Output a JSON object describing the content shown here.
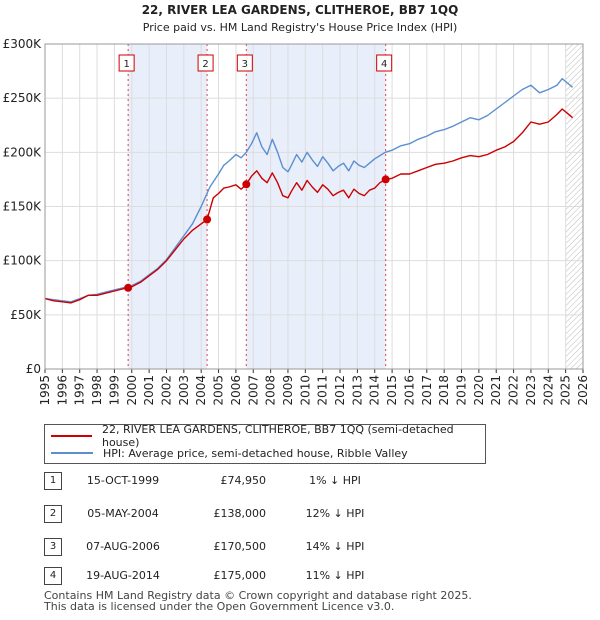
{
  "chart_data": {
    "type": "line",
    "title": "22, RIVER LEA GARDENS, CLITHEROE, BB7 1QQ",
    "subtitle": "Price paid vs. HM Land Registry's House Price Index (HPI)",
    "xlim": [
      1995,
      2026
    ],
    "ylim": [
      0,
      300000
    ],
    "y_ticks": [
      0,
      50000,
      100000,
      150000,
      200000,
      250000,
      300000
    ],
    "y_tick_labels": [
      "£0",
      "£50K",
      "£100K",
      "£150K",
      "£200K",
      "£250K",
      "£300K"
    ],
    "x_ticks": [
      1995,
      1996,
      1997,
      1998,
      1999,
      2000,
      2001,
      2002,
      2003,
      2004,
      2005,
      2006,
      2007,
      2008,
      2009,
      2010,
      2011,
      2012,
      2013,
      2014,
      2015,
      2016,
      2017,
      2018,
      2019,
      2020,
      2021,
      2022,
      2023,
      2024,
      2025,
      2026
    ],
    "x_tick_labels": [
      "1995",
      "1996",
      "1997",
      "1998",
      "1999",
      "2000",
      "2001",
      "2002",
      "2003",
      "2004",
      "2005",
      "2006",
      "2007",
      "2008",
      "2009",
      "2010",
      "2011",
      "2012",
      "2013",
      "2014",
      "2015",
      "2016",
      "2017",
      "2018",
      "2019",
      "2020",
      "2021",
      "2022",
      "2023",
      "2024",
      "2025",
      "2026"
    ],
    "grid": true,
    "shaded_periods": [
      [
        1999.79,
        2004.34
      ],
      [
        2006.6,
        2014.63
      ]
    ],
    "hatched_from": 2025.0,
    "series": [
      {
        "name": "22, RIVER LEA GARDENS, CLITHEROE, BB7 1QQ (semi-detached house)",
        "color": "#cc0000",
        "x": [
          1995.0,
          1995.5,
          1996.0,
          1996.5,
          1997.0,
          1997.5,
          1998.0,
          1998.5,
          1999.0,
          1999.5,
          1999.79,
          2000.0,
          2000.5,
          2001.0,
          2001.5,
          2002.0,
          2002.5,
          2003.0,
          2003.5,
          2004.0,
          2004.34,
          2004.7,
          2005.0,
          2005.3,
          2005.6,
          2006.0,
          2006.3,
          2006.6,
          2006.9,
          2007.2,
          2007.5,
          2007.8,
          2008.1,
          2008.4,
          2008.7,
          2009.0,
          2009.2,
          2009.5,
          2009.8,
          2010.1,
          2010.4,
          2010.7,
          2011.0,
          2011.3,
          2011.6,
          2011.9,
          2012.2,
          2012.5,
          2012.8,
          2013.1,
          2013.4,
          2013.7,
          2014.0,
          2014.3,
          2014.63,
          2015.0,
          2015.5,
          2016.0,
          2016.5,
          2017.0,
          2017.5,
          2018.0,
          2018.5,
          2019.0,
          2019.5,
          2020.0,
          2020.5,
          2021.0,
          2021.5,
          2022.0,
          2022.5,
          2023.0,
          2023.5,
          2024.0,
          2024.5,
          2024.8,
          2025.1,
          2025.4
        ],
        "values": [
          65000,
          63000,
          62000,
          61000,
          64000,
          68000,
          68000,
          70000,
          72000,
          74000,
          74950,
          76000,
          80000,
          86000,
          92000,
          100000,
          110000,
          120000,
          128000,
          134000,
          138000,
          158000,
          162000,
          167000,
          168000,
          170000,
          166000,
          170500,
          178000,
          183000,
          176000,
          172000,
          181000,
          172000,
          160000,
          158000,
          164000,
          172000,
          165000,
          174000,
          168000,
          163000,
          170000,
          166000,
          160000,
          163000,
          165000,
          158000,
          166000,
          162000,
          160000,
          165000,
          167000,
          172000,
          175000,
          176000,
          180000,
          180000,
          183000,
          186000,
          189000,
          190000,
          192000,
          195000,
          197000,
          196000,
          198000,
          202000,
          205000,
          210000,
          218000,
          228000,
          226000,
          228000,
          235000,
          240000,
          236000,
          232000
        ]
      },
      {
        "name": "HPI: Average price, semi-detached house, Ribble Valley",
        "color": "#5b8fd0",
        "x": [
          1995.0,
          1995.5,
          1996.0,
          1996.5,
          1997.0,
          1997.5,
          1998.0,
          1998.5,
          1999.0,
          1999.5,
          2000.0,
          2000.5,
          2001.0,
          2001.5,
          2002.0,
          2002.5,
          2003.0,
          2003.5,
          2004.0,
          2004.5,
          2005.0,
          2005.3,
          2005.6,
          2006.0,
          2006.3,
          2006.6,
          2006.9,
          2007.2,
          2007.5,
          2007.8,
          2008.1,
          2008.4,
          2008.7,
          2009.0,
          2009.2,
          2009.5,
          2009.8,
          2010.1,
          2010.4,
          2010.7,
          2011.0,
          2011.3,
          2011.6,
          2011.9,
          2012.2,
          2012.5,
          2012.8,
          2013.1,
          2013.4,
          2013.7,
          2014.0,
          2014.3,
          2014.6,
          2015.0,
          2015.5,
          2016.0,
          2016.5,
          2017.0,
          2017.5,
          2018.0,
          2018.5,
          2019.0,
          2019.5,
          2020.0,
          2020.5,
          2021.0,
          2021.5,
          2022.0,
          2022.5,
          2023.0,
          2023.5,
          2024.0,
          2024.5,
          2024.8,
          2025.1,
          2025.4
        ],
        "values": [
          65000,
          64000,
          63000,
          62000,
          65000,
          68000,
          69000,
          71000,
          73000,
          75000,
          77000,
          81000,
          87000,
          93000,
          101000,
          112000,
          123000,
          134000,
          150000,
          168000,
          180000,
          188000,
          192000,
          198000,
          195000,
          200000,
          208000,
          218000,
          205000,
          198000,
          212000,
          200000,
          186000,
          182000,
          188000,
          198000,
          191000,
          200000,
          193000,
          187000,
          196000,
          190000,
          183000,
          187000,
          190000,
          183000,
          192000,
          188000,
          186000,
          190000,
          194000,
          197000,
          200000,
          202000,
          206000,
          208000,
          212000,
          215000,
          219000,
          221000,
          224000,
          228000,
          232000,
          230000,
          234000,
          240000,
          246000,
          252000,
          258000,
          262000,
          255000,
          258000,
          262000,
          268000,
          264000,
          260000
        ]
      }
    ],
    "sale_markers": [
      {
        "label": "1",
        "x": 1999.79,
        "value": 74950
      },
      {
        "label": "2",
        "x": 2004.34,
        "value": 138000
      },
      {
        "label": "3",
        "x": 2006.6,
        "value": 170500
      },
      {
        "label": "4",
        "x": 2014.63,
        "value": 175000
      }
    ]
  },
  "legend": {
    "property_label": "22, RIVER LEA GARDENS, CLITHEROE, BB7 1QQ (semi-detached house)",
    "hpi_label": "HPI: Average price, semi-detached house, Ribble Valley"
  },
  "sales": [
    {
      "num": "1",
      "date": "15-OCT-1999",
      "price": "£74,950",
      "hpi": "1% ↓ HPI"
    },
    {
      "num": "2",
      "date": "05-MAY-2004",
      "price": "£138,000",
      "hpi": "12% ↓ HPI"
    },
    {
      "num": "3",
      "date": "07-AUG-2006",
      "price": "£170,500",
      "hpi": "14% ↓ HPI"
    },
    {
      "num": "4",
      "date": "19-AUG-2014",
      "price": "£175,000",
      "hpi": "11% ↓ HPI"
    }
  ],
  "footer": {
    "line1": "Contains HM Land Registry data © Crown copyright and database right 2025.",
    "line2": "This data is licensed under the Open Government Licence v3.0."
  }
}
